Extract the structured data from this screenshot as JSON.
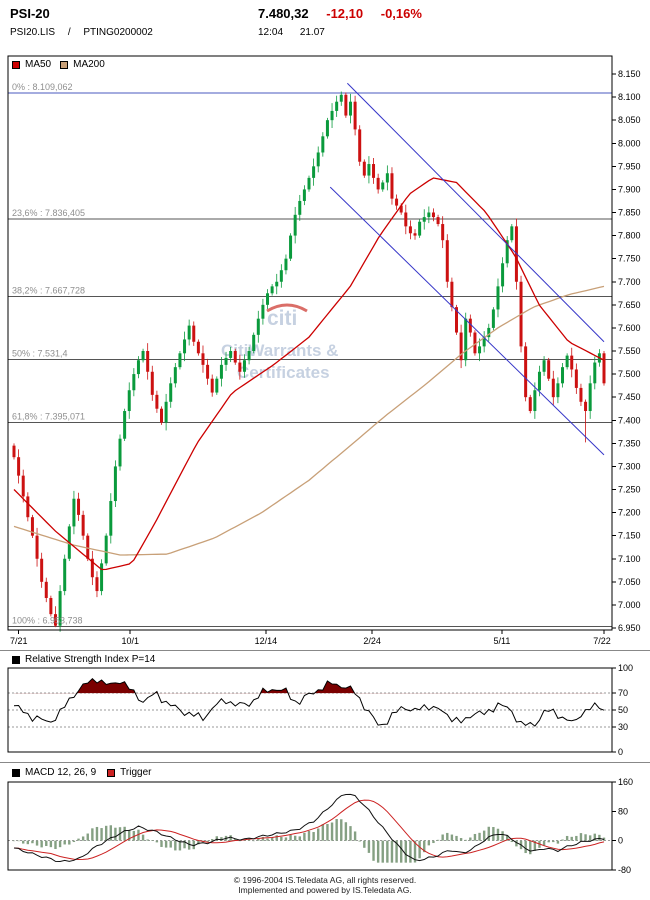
{
  "header": {
    "title": "PSI-20",
    "symbol": "PSI20.LIS",
    "separator": "/",
    "isin": "PTING0200002",
    "price": "7.480,32",
    "change": "-12,10",
    "change_pct": "-0,16%",
    "time": "12:04",
    "date": "21.07"
  },
  "legend": {
    "ma50_label": "MA50",
    "ma200_label": "MA200"
  },
  "watermark": {
    "brand": "citi",
    "line1": "CitiWarrants &",
    "line2": "Certificates"
  },
  "rsi_panel": {
    "title": "Relative Strength Index P=14"
  },
  "macd_panel": {
    "title": "MACD 12, 26, 9",
    "trigger_label": "Trigger"
  },
  "footer": {
    "line1": "© 1996-2004 IS.Teledata AG, all rights reserved.",
    "line2": "Implemented and powered by IS.Teledata AG."
  },
  "chart_data": {
    "type": "candlestick",
    "instrument": "PSI-20",
    "ylim": [
      6950,
      8150
    ],
    "y_ticks": [
      8150,
      8100,
      8050,
      8000,
      7950,
      7900,
      7850,
      7800,
      7750,
      7700,
      7650,
      7600,
      7550,
      7500,
      7450,
      7400,
      7350,
      7300,
      7250,
      7200,
      7150,
      7100,
      7050,
      7000,
      6950
    ],
    "x_labels": [
      {
        "label": "7/21",
        "t": 0.008
      },
      {
        "label": "10/1",
        "t": 0.197
      },
      {
        "label": "12/14",
        "t": 0.427
      },
      {
        "label": "2/24",
        "t": 0.607
      },
      {
        "label": "5/11",
        "t": 0.827
      },
      {
        "label": "7/22",
        "t": 1.0
      }
    ],
    "fib_levels": [
      {
        "label": "0% : 8.109,062",
        "value": 8109.062,
        "color": "#4a5abf"
      },
      {
        "label": "23,6% : 7.836,405",
        "value": 7836.405,
        "color": "#555555"
      },
      {
        "label": "38,2% : 7.667,728",
        "value": 7667.728,
        "color": "#555555"
      },
      {
        "label": "50% : 7.531,4",
        "value": 7531.4,
        "color": "#555555"
      },
      {
        "label": "61,8% : 7.395,071",
        "value": 7395.071,
        "color": "#555555"
      },
      {
        "label": "100% : 6.953,738",
        "value": 6953.738,
        "color": "#555555"
      }
    ],
    "closes": [
      7320,
      7280,
      7235,
      7190,
      7150,
      7100,
      7050,
      7015,
      6980,
      6955,
      7030,
      7100,
      7170,
      7230,
      7195,
      7150,
      7100,
      7060,
      7030,
      7090,
      7150,
      7225,
      7300,
      7360,
      7420,
      7465,
      7500,
      7530,
      7550,
      7505,
      7455,
      7425,
      7395,
      7440,
      7480,
      7515,
      7545,
      7575,
      7605,
      7570,
      7545,
      7520,
      7490,
      7460,
      7490,
      7520,
      7535,
      7550,
      7525,
      7505,
      7530,
      7550,
      7585,
      7620,
      7650,
      7675,
      7690,
      7700,
      7725,
      7750,
      7800,
      7845,
      7875,
      7900,
      7925,
      7950,
      7980,
      8015,
      8050,
      8070,
      8090,
      8105,
      8060,
      8090,
      8030,
      7960,
      7930,
      7955,
      7925,
      7900,
      7915,
      7935,
      7880,
      7865,
      7850,
      7820,
      7805,
      7800,
      7830,
      7840,
      7850,
      7840,
      7825,
      7790,
      7700,
      7645,
      7590,
      7530,
      7620,
      7590,
      7545,
      7560,
      7580,
      7600,
      7640,
      7690,
      7740,
      7790,
      7820,
      7700,
      7560,
      7450,
      7420,
      7465,
      7505,
      7530,
      7490,
      7450,
      7480,
      7515,
      7540,
      7510,
      7470,
      7440,
      7420,
      7480,
      7525,
      7545,
      7480
    ],
    "high_overrides": {
      "71": 8112
    },
    "low_overrides": {
      "9": 6952,
      "124": 7352
    },
    "ma50": [
      [
        0,
        7250
      ],
      [
        0.07,
        7160
      ],
      [
        0.15,
        7075
      ],
      [
        0.2,
        7090
      ],
      [
        0.24,
        7180
      ],
      [
        0.31,
        7350
      ],
      [
        0.37,
        7460
      ],
      [
        0.44,
        7520
      ],
      [
        0.5,
        7580
      ],
      [
        0.57,
        7690
      ],
      [
        0.62,
        7800
      ],
      [
        0.67,
        7890
      ],
      [
        0.71,
        7925
      ],
      [
        0.75,
        7915
      ],
      [
        0.8,
        7850
      ],
      [
        0.85,
        7755
      ],
      [
        0.89,
        7650
      ],
      [
        0.94,
        7570
      ],
      [
        1,
        7530
      ]
    ],
    "ma200": [
      [
        0,
        7170
      ],
      [
        0.1,
        7130
      ],
      [
        0.18,
        7108
      ],
      [
        0.26,
        7110
      ],
      [
        0.34,
        7145
      ],
      [
        0.42,
        7200
      ],
      [
        0.5,
        7270
      ],
      [
        0.57,
        7345
      ],
      [
        0.63,
        7410
      ],
      [
        0.7,
        7480
      ],
      [
        0.76,
        7545
      ],
      [
        0.82,
        7600
      ],
      [
        0.88,
        7645
      ],
      [
        0.94,
        7672
      ],
      [
        1,
        7690
      ]
    ],
    "trendlines": [
      {
        "x1": 0.565,
        "y1": 8130,
        "x2": 1.0,
        "y2": 7570
      },
      {
        "x1": 0.536,
        "y1": 7905,
        "x2": 1.0,
        "y2": 7325
      }
    ],
    "rsi": {
      "ticks": [
        100,
        70,
        50,
        30,
        0
      ],
      "overbought": 70,
      "mid": 50,
      "oversold": 30,
      "anchors": [
        [
          0,
          55
        ],
        [
          0.03,
          42
        ],
        [
          0.06,
          35
        ],
        [
          0.08,
          48
        ],
        [
          0.1,
          68
        ],
        [
          0.12,
          80
        ],
        [
          0.14,
          88
        ],
        [
          0.16,
          78
        ],
        [
          0.18,
          86
        ],
        [
          0.2,
          72
        ],
        [
          0.22,
          60
        ],
        [
          0.24,
          70
        ],
        [
          0.26,
          58
        ],
        [
          0.28,
          50
        ],
        [
          0.3,
          45
        ],
        [
          0.32,
          40
        ],
        [
          0.34,
          55
        ],
        [
          0.36,
          62
        ],
        [
          0.38,
          55
        ],
        [
          0.4,
          58
        ],
        [
          0.42,
          70
        ],
        [
          0.44,
          76
        ],
        [
          0.46,
          72
        ],
        [
          0.48,
          58
        ],
        [
          0.5,
          68
        ],
        [
          0.52,
          76
        ],
        [
          0.54,
          82
        ],
        [
          0.56,
          78
        ],
        [
          0.58,
          70
        ],
        [
          0.6,
          48
        ],
        [
          0.62,
          30
        ],
        [
          0.64,
          42
        ],
        [
          0.66,
          55
        ],
        [
          0.68,
          48
        ],
        [
          0.7,
          56
        ],
        [
          0.72,
          50
        ],
        [
          0.74,
          42
        ],
        [
          0.76,
          34
        ],
        [
          0.78,
          48
        ],
        [
          0.8,
          44
        ],
        [
          0.82,
          58
        ],
        [
          0.84,
          50
        ],
        [
          0.86,
          34
        ],
        [
          0.88,
          30
        ],
        [
          0.9,
          50
        ],
        [
          0.92,
          45
        ],
        [
          0.94,
          38
        ],
        [
          0.95,
          32
        ],
        [
          0.96,
          46
        ],
        [
          0.98,
          54
        ],
        [
          1,
          52
        ]
      ]
    },
    "macd": {
      "ticks": [
        160,
        80,
        0,
        -80
      ],
      "anchors": [
        [
          0,
          -20
        ],
        [
          0.04,
          -40
        ],
        [
          0.08,
          -58
        ],
        [
          0.11,
          -50
        ],
        [
          0.14,
          -15
        ],
        [
          0.18,
          20
        ],
        [
          0.21,
          38
        ],
        [
          0.24,
          25
        ],
        [
          0.27,
          5
        ],
        [
          0.3,
          -12
        ],
        [
          0.33,
          -5
        ],
        [
          0.36,
          8
        ],
        [
          0.39,
          3
        ],
        [
          0.42,
          12
        ],
        [
          0.45,
          20
        ],
        [
          0.48,
          30
        ],
        [
          0.51,
          55
        ],
        [
          0.54,
          100
        ],
        [
          0.56,
          130
        ],
        [
          0.58,
          120
        ],
        [
          0.6,
          85
        ],
        [
          0.63,
          25
        ],
        [
          0.66,
          -30
        ],
        [
          0.68,
          -55
        ],
        [
          0.71,
          -45
        ],
        [
          0.74,
          -25
        ],
        [
          0.76,
          -35
        ],
        [
          0.78,
          -20
        ],
        [
          0.8,
          5
        ],
        [
          0.82,
          20
        ],
        [
          0.84,
          10
        ],
        [
          0.86,
          -15
        ],
        [
          0.88,
          -30
        ],
        [
          0.9,
          -20
        ],
        [
          0.92,
          -28
        ],
        [
          0.94,
          -15
        ],
        [
          0.96,
          -5
        ],
        [
          0.98,
          2
        ],
        [
          1,
          6
        ]
      ]
    },
    "colors": {
      "up": "#0a9a3c",
      "down": "#cc1111",
      "ma50": "#cc0000",
      "ma200": "#c8a078",
      "trend": "#3636c8",
      "rsi_fill": "#7b0000",
      "macd_hist": "#85a083",
      "trigger": "#cc2222",
      "negative": "#cc0000"
    }
  }
}
